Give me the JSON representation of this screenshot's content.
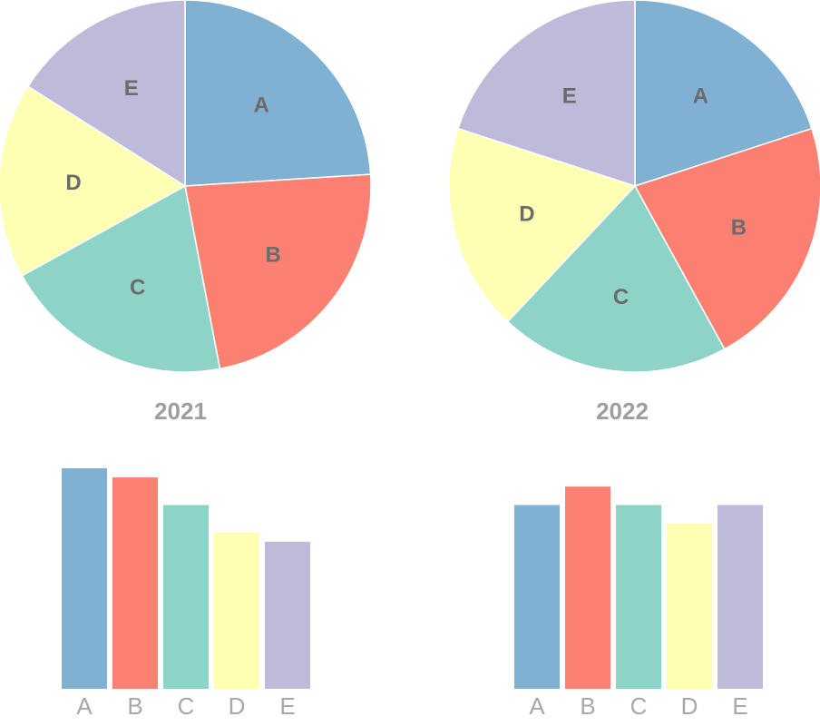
{
  "chart_data": [
    {
      "type": "pie",
      "title": "2021",
      "categories": [
        "A",
        "B",
        "C",
        "D",
        "E"
      ],
      "values": [
        24,
        23,
        20,
        17,
        16
      ],
      "start": "12 o'clock",
      "direction": "clockwise"
    },
    {
      "type": "pie",
      "title": "2022",
      "categories": [
        "A",
        "B",
        "C",
        "D",
        "E"
      ],
      "values": [
        20,
        22,
        20,
        18,
        20
      ],
      "start": "12 o'clock",
      "direction": "clockwise"
    },
    {
      "type": "bar",
      "title": "2021",
      "categories": [
        "A",
        "B",
        "C",
        "D",
        "E"
      ],
      "values": [
        24,
        23,
        20,
        17,
        16
      ],
      "ylim": [
        0,
        24
      ],
      "axes": false,
      "grid": false
    },
    {
      "type": "bar",
      "title": "2022",
      "categories": [
        "A",
        "B",
        "C",
        "D",
        "E"
      ],
      "values": [
        20,
        22,
        20,
        18,
        20
      ],
      "ylim": [
        0,
        24
      ],
      "axes": false,
      "grid": false
    }
  ],
  "colors": {
    "A": "#80b1d3",
    "B": "#fb8072",
    "C": "#8dd3c7",
    "D": "#ffffb3",
    "E": "#bebada"
  }
}
